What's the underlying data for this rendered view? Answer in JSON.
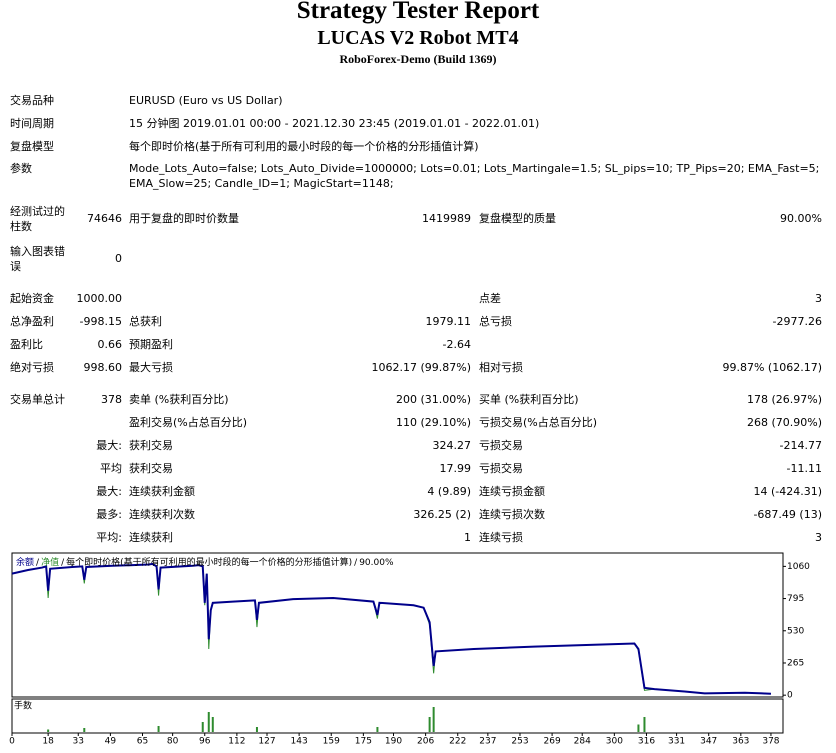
{
  "header": {
    "title": "Strategy Tester Report",
    "subtitle": "LUCAS V2 Robot MT4",
    "server": "RoboForex-Demo (Build 1369)"
  },
  "table": {
    "rows": [
      {
        "label": "交易品种",
        "wide": "EURUSD (Euro vs US Dollar)"
      },
      {
        "label": "时间周期",
        "wide": "15 分钟图 2019.01.01 00:00 - 2021.12.30 23:45 (2019.01.01 - 2022.01.01)"
      },
      {
        "label": "复盘模型",
        "wide": "每个即时价格(基于所有可利用的最小时段的每一个价格的分形插值计算)"
      },
      {
        "label": "参数",
        "wide": "Mode_Lots_Auto=false; Lots_Auto_Divide=1000000; Lots=0.01; Lots_Martingale=1.5; SL_pips=10; TP_Pips=20; EMA_Fast=5; EMA_Slow=25; Candle_ID=1; MagicStart=1148;"
      },
      {
        "label": "经测试过的柱数",
        "value": "74646",
        "label2": "用于复盘的即时价数量",
        "value2": "1419989",
        "label3": "复盘模型的质量",
        "value3": "90.00%"
      },
      {
        "label": "输入图表错误",
        "value": "0"
      },
      {
        "label": "起始资金",
        "value": "1000.00",
        "label3": "点差",
        "value3": "3"
      },
      {
        "label": "总净盈利",
        "value": "-998.15",
        "label2": "总获利",
        "value2": "1979.11",
        "label3": "总亏损",
        "value3": "-2977.26"
      },
      {
        "label": "盈利比",
        "value": "0.66",
        "label2": "预期盈利",
        "value2": "-2.64"
      },
      {
        "label": "绝对亏损",
        "value": "998.60",
        "label2": "最大亏损",
        "value2": "1062.17 (99.87%)",
        "label3": "相对亏损",
        "value3": "99.87% (1062.17)"
      },
      {
        "label": "交易单总计",
        "value": "378",
        "label2": "卖单 (%获利百分比)",
        "value2": "200 (31.00%)",
        "label3": "买单 (%获利百分比)",
        "value3": "178 (26.97%)"
      },
      {
        "label2": "盈利交易(%占总百分比)",
        "value2": "110 (29.10%)",
        "label3": "亏损交易(%占总百分比)",
        "value3": "268 (70.90%)"
      },
      {
        "value": "最大:",
        "label2": "获利交易",
        "value2": "324.27",
        "label3": "亏损交易",
        "value3": "-214.77"
      },
      {
        "value": "平均",
        "label2": "获利交易",
        "value2": "17.99",
        "label3": "亏损交易",
        "value3": "-11.11"
      },
      {
        "value": "最大:",
        "label2": "连续获利金额",
        "value2": "4 (9.89)",
        "label3": "连续亏损金额",
        "value3": "14 (-424.31)"
      },
      {
        "value": "最多:",
        "label2": "连续获利次数",
        "value2": "326.25 (2)",
        "label3": "连续亏损次数",
        "value3": "-687.49 (13)"
      },
      {
        "value": "平均:",
        "label2": "连续获利",
        "value2": "1",
        "label3": "连续亏损",
        "value3": "3"
      }
    ]
  },
  "chart_data": {
    "type": "line",
    "description": "每个即时价格(基于所有可利用的最小时段的每一个价格的分形插值计算)",
    "separator": "/",
    "quality": "90.00%",
    "x": [
      0,
      8,
      15,
      17,
      18,
      19,
      30,
      35,
      36,
      37,
      50,
      60,
      68,
      70,
      72,
      73,
      74,
      90,
      93,
      95,
      96,
      97,
      98,
      99,
      100,
      110,
      121,
      122,
      123,
      140,
      160,
      180,
      182,
      183,
      200,
      205,
      208,
      210,
      211,
      230,
      260,
      280,
      300,
      310,
      312,
      315,
      320,
      335,
      345,
      365,
      378
    ],
    "series": [
      {
        "name": "余额",
        "color": "#00008b",
        "values": [
          1000,
          1030,
          1050,
          1060,
          860,
          1040,
          1055,
          1060,
          950,
          1055,
          1065,
          1070,
          1075,
          1080,
          1060,
          870,
          1050,
          1065,
          1070,
          1060,
          760,
          1000,
          460,
          700,
          760,
          770,
          780,
          620,
          760,
          790,
          800,
          770,
          660,
          760,
          740,
          720,
          600,
          240,
          360,
          380,
          400,
          410,
          420,
          425,
          380,
          60,
          50,
          30,
          15,
          20,
          12
        ]
      },
      {
        "name": "净值",
        "color": "#2e8b2e",
        "values": [
          1000,
          1030,
          1050,
          1060,
          800,
          1040,
          1055,
          1060,
          920,
          1055,
          1065,
          1070,
          1075,
          1080,
          1060,
          820,
          1050,
          1065,
          1070,
          1060,
          740,
          1000,
          380,
          700,
          760,
          770,
          780,
          560,
          760,
          790,
          800,
          770,
          630,
          760,
          740,
          720,
          580,
          180,
          360,
          380,
          400,
          410,
          420,
          425,
          370,
          40,
          50,
          30,
          15,
          20,
          12
        ]
      }
    ],
    "xlim": [
      0,
      384
    ],
    "xticks": [
      0,
      18,
      33,
      49,
      65,
      80,
      96,
      112,
      127,
      143,
      159,
      175,
      190,
      206,
      222,
      237,
      253,
      269,
      284,
      300,
      316,
      331,
      347,
      363,
      378
    ],
    "ylim": [
      -15,
      1170
    ],
    "yticks": [
      0,
      265,
      530,
      795,
      1060
    ],
    "lots": {
      "name": "手数",
      "color": "#2e8b2e",
      "x": [
        18,
        36,
        73,
        95,
        98,
        100,
        122,
        182,
        208,
        210,
        312,
        315
      ],
      "values": [
        0.05,
        0.08,
        0.12,
        0.2,
        0.4,
        0.3,
        0.1,
        0.1,
        0.3,
        0.5,
        0.15,
        0.3
      ],
      "ylim": [
        0,
        0.6
      ]
    }
  }
}
